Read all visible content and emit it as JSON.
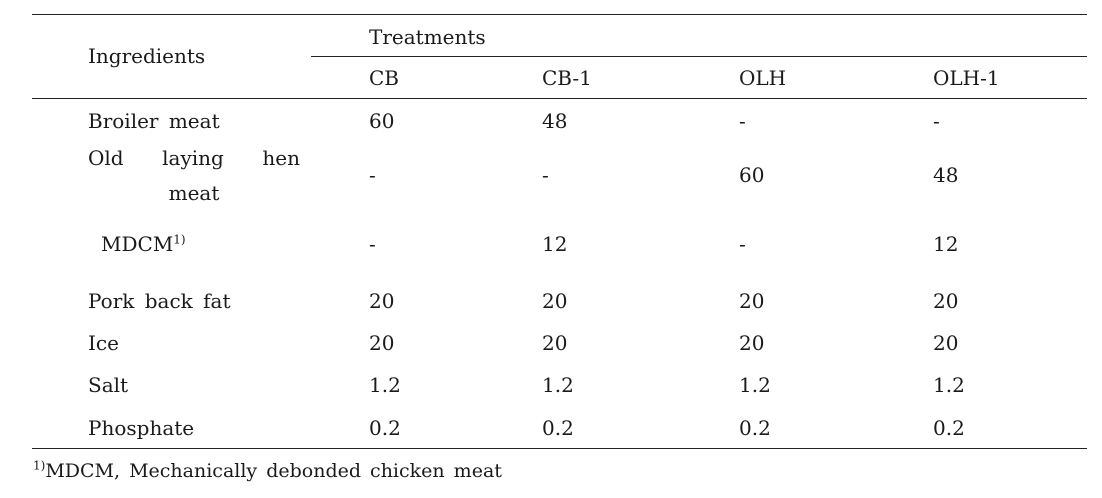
{
  "table": {
    "header": {
      "ingredients_label": "Ingredients",
      "treatments_label": "Treatments",
      "columns": [
        "CB",
        "CB-1",
        "OLH",
        "OLH-1"
      ]
    },
    "rows": [
      {
        "label": "Broiler meat",
        "values": [
          "60",
          "48",
          "-",
          "-"
        ]
      },
      {
        "label_words": [
          "Old",
          "laying",
          "hen"
        ],
        "label_line2": "meat",
        "values": [
          "-",
          "-",
          "60",
          "48"
        ]
      },
      {
        "label": "MDCM",
        "label_sup": "1)",
        "values": [
          "-",
          "12",
          "-",
          "12"
        ]
      },
      {
        "label": "Pork back fat",
        "values": [
          "20",
          "20",
          "20",
          "20"
        ]
      },
      {
        "label": "Ice",
        "values": [
          "20",
          "20",
          "20",
          "20"
        ]
      },
      {
        "label": "Salt",
        "values": [
          "1.2",
          "1.2",
          "1.2",
          "1.2"
        ]
      },
      {
        "label": "Phosphate",
        "values": [
          "0.2",
          "0.2",
          "0.2",
          "0.2"
        ]
      }
    ]
  },
  "footnote": {
    "marker": "1)",
    "text": "MDCM, Mechanically debonded chicken meat"
  }
}
